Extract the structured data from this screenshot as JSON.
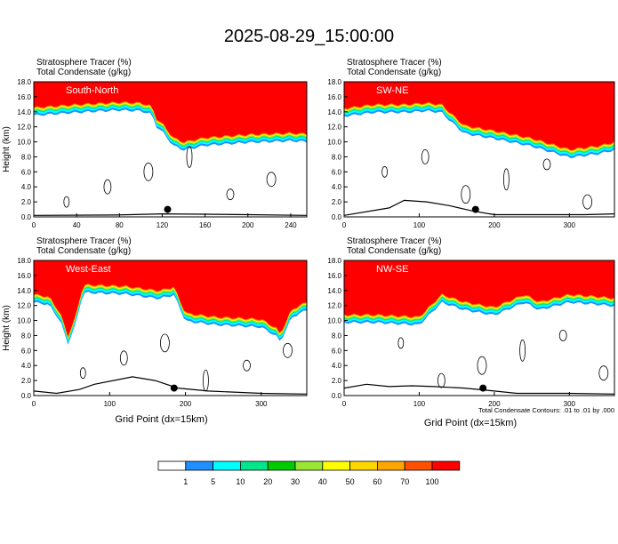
{
  "title": "2025-08-29_15:00:00",
  "colors": {
    "levels": [
      "#ffffff",
      "#1e90ff",
      "#00ffff",
      "#00e68c",
      "#00cc00",
      "#99e633",
      "#ffff00",
      "#ffd700",
      "#ffa500",
      "#ff5000",
      "#ff0000"
    ]
  },
  "chart_data": [
    {
      "type": "heatmap",
      "panel": "South-North",
      "var_lines": [
        "Stratosphere Tracer   (%)",
        "Total Condensate   (g/kg)"
      ],
      "ylabel": "Height (km)",
      "xlabel": "",
      "xlim": [
        0,
        255
      ],
      "ylim": [
        0,
        18
      ],
      "xticks": [
        "0",
        "40",
        "80",
        "120",
        "160",
        "200",
        "240"
      ],
      "yticks": [
        "0.0",
        "2.0",
        "4.0",
        "6.0",
        "8.0",
        "10.0",
        "12.0",
        "14.0",
        "16.0",
        "18.0"
      ],
      "footnote": "",
      "tropopause_km": [
        [
          0,
          14.6
        ],
        [
          40,
          15.0
        ],
        [
          80,
          15.3
        ],
        [
          100,
          15.2
        ],
        [
          110,
          14.8
        ],
        [
          115,
          13.0
        ],
        [
          120,
          12.5
        ],
        [
          130,
          10.6
        ],
        [
          140,
          10.0
        ],
        [
          160,
          10.6
        ],
        [
          200,
          11.0
        ],
        [
          240,
          11.2
        ],
        [
          255,
          11.1
        ]
      ],
      "terrain_km": [
        [
          0,
          0.2
        ],
        [
          75,
          0.25
        ],
        [
          90,
          0.3
        ],
        [
          120,
          0.4
        ],
        [
          160,
          0.35
        ],
        [
          200,
          0.3
        ],
        [
          255,
          0.2
        ]
      ]
    },
    {
      "type": "heatmap",
      "panel": "SW-NE",
      "var_lines": [
        "Stratosphere Tracer   (%)",
        "Total Condensate   (g/kg)"
      ],
      "ylabel": "",
      "xlabel": "",
      "xlim": [
        0,
        360
      ],
      "ylim": [
        0,
        18
      ],
      "xticks": [
        "0",
        "100",
        "200",
        "300"
      ],
      "yticks": [
        "0.0",
        "2.0",
        "4.0",
        "6.0",
        "8.0",
        "10.0",
        "12.0",
        "14.0",
        "16.0",
        "18.0"
      ],
      "footnote": "",
      "tropopause_km": [
        [
          0,
          14.5
        ],
        [
          40,
          15.0
        ],
        [
          80,
          15.0
        ],
        [
          110,
          15.2
        ],
        [
          130,
          15.0
        ],
        [
          140,
          14.0
        ],
        [
          160,
          12.2
        ],
        [
          200,
          11.5
        ],
        [
          250,
          10.5
        ],
        [
          300,
          9.0
        ],
        [
          340,
          9.5
        ],
        [
          360,
          10.0
        ]
      ],
      "terrain_km": [
        [
          0,
          0.2
        ],
        [
          60,
          1.2
        ],
        [
          80,
          2.2
        ],
        [
          110,
          2.0
        ],
        [
          140,
          1.5
        ],
        [
          170,
          0.8
        ],
        [
          200,
          0.3
        ],
        [
          260,
          0.3
        ],
        [
          320,
          0.3
        ],
        [
          360,
          0.4
        ]
      ]
    },
    {
      "type": "heatmap",
      "panel": "West-East",
      "var_lines": [
        "Stratosphere Tracer   (%)",
        "Total Condensate   (g/kg)"
      ],
      "ylabel": "Height (km)",
      "xlabel": "Grid Point (dx=15km)",
      "xlim": [
        0,
        360
      ],
      "ylim": [
        0,
        18
      ],
      "xticks": [
        "0",
        "100",
        "200",
        "300"
      ],
      "yticks": [
        "0.0",
        "2.0",
        "4.0",
        "6.0",
        "8.0",
        "10.0",
        "12.0",
        "14.0",
        "16.0",
        "18.0"
      ],
      "footnote": "",
      "tropopause_km": [
        [
          0,
          13.5
        ],
        [
          20,
          13.2
        ],
        [
          35,
          11.0
        ],
        [
          45,
          8.0
        ],
        [
          55,
          10.5
        ],
        [
          65,
          14.8
        ],
        [
          120,
          14.6
        ],
        [
          165,
          14.0
        ],
        [
          185,
          14.5
        ],
        [
          200,
          11.0
        ],
        [
          240,
          10.5
        ],
        [
          300,
          10.2
        ],
        [
          320,
          9.0
        ],
        [
          325,
          8.2
        ],
        [
          340,
          11.5
        ],
        [
          360,
          12.5
        ]
      ],
      "terrain_km": [
        [
          0,
          0.6
        ],
        [
          30,
          0.3
        ],
        [
          60,
          0.8
        ],
        [
          80,
          1.5
        ],
        [
          130,
          2.5
        ],
        [
          160,
          2.0
        ],
        [
          190,
          1.0
        ],
        [
          230,
          0.6
        ],
        [
          300,
          0.3
        ],
        [
          360,
          0.2
        ]
      ]
    },
    {
      "type": "heatmap",
      "panel": "NW-SE",
      "var_lines": [
        "Stratosphere Tracer   (%)",
        "Total Condensate   (g/kg)"
      ],
      "ylabel": "",
      "xlabel": "Grid Point (dx=15km)",
      "xlim": [
        0,
        360
      ],
      "ylim": [
        0,
        18
      ],
      "xticks": [
        "0",
        "100",
        "200",
        "300"
      ],
      "yticks": [
        "0.0",
        "2.0",
        "4.0",
        "6.0",
        "8.0",
        "10.0",
        "12.0",
        "14.0",
        "16.0",
        "18.0"
      ],
      "footnote": "Total Condensate Contours: .01 to .01 by .000",
      "tropopause_km": [
        [
          0,
          10.8
        ],
        [
          40,
          10.8
        ],
        [
          80,
          10.6
        ],
        [
          100,
          10.5
        ],
        [
          110,
          11.5
        ],
        [
          130,
          13.5
        ],
        [
          160,
          12.5
        ],
        [
          200,
          11.8
        ],
        [
          240,
          13.5
        ],
        [
          260,
          12.5
        ],
        [
          300,
          13.5
        ],
        [
          340,
          13.2
        ],
        [
          360,
          13.0
        ]
      ],
      "terrain_km": [
        [
          0,
          1.0
        ],
        [
          30,
          1.5
        ],
        [
          60,
          1.2
        ],
        [
          90,
          1.3
        ],
        [
          120,
          1.2
        ],
        [
          160,
          1.0
        ],
        [
          200,
          0.6
        ],
        [
          230,
          0.3
        ],
        [
          300,
          0.3
        ],
        [
          360,
          0.2
        ]
      ]
    }
  ],
  "colorbar": {
    "labels": [
      "1",
      "5",
      "10",
      "20",
      "30",
      "40",
      "50",
      "60",
      "70",
      "100"
    ]
  }
}
